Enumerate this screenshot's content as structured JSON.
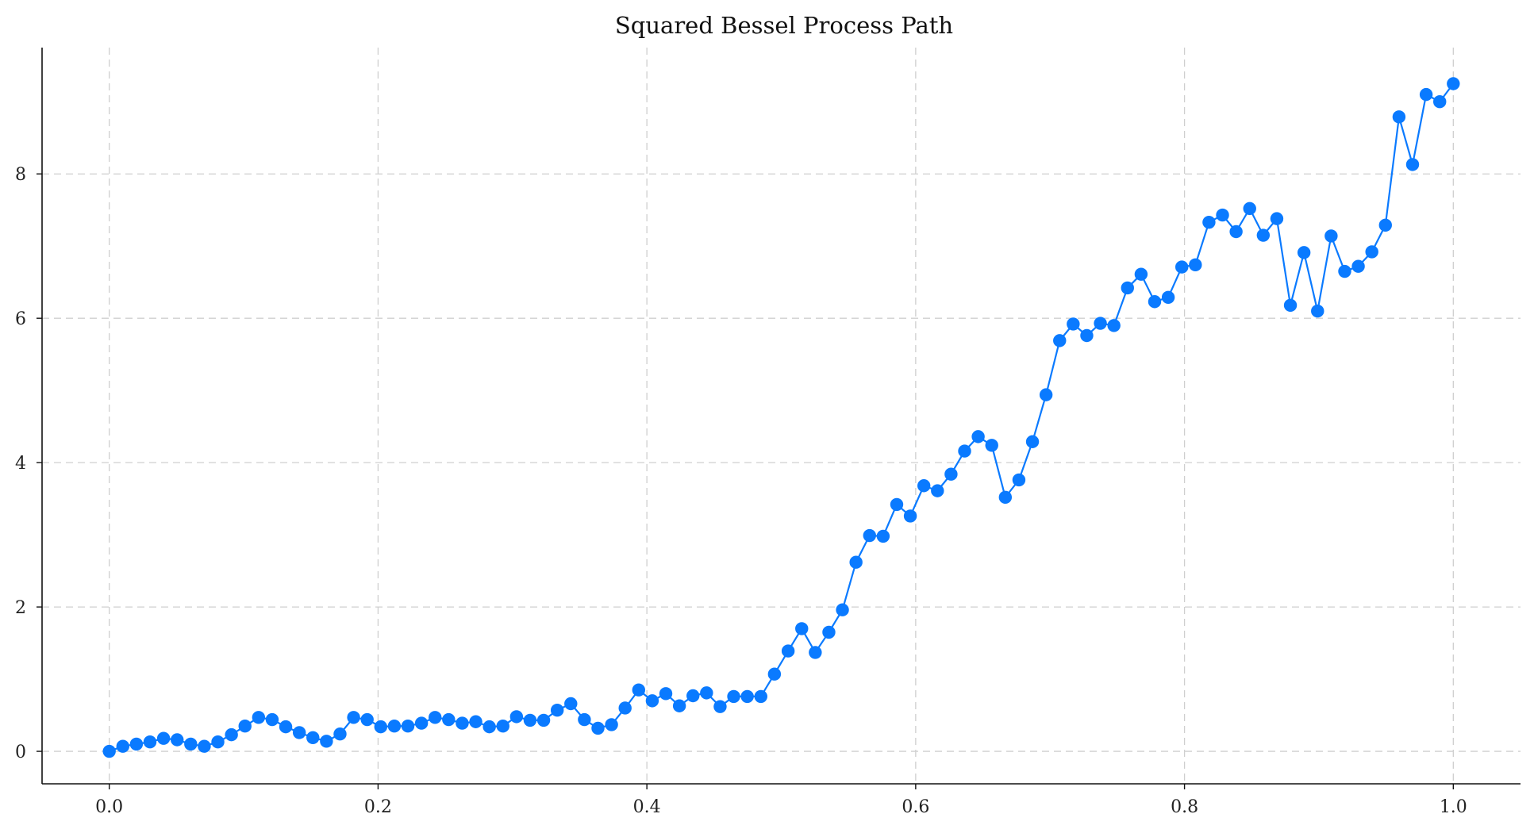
{
  "chart_data": {
    "type": "line",
    "title": "Squared Bessel Process Path",
    "xlabel": "",
    "ylabel": "",
    "xlim": [
      -0.05,
      1.05
    ],
    "ylim": [
      -0.45,
      9.75
    ],
    "xticks": [
      0.0,
      0.2,
      0.4,
      0.6,
      0.8,
      1.0
    ],
    "xtick_labels": [
      "0.0",
      "0.2",
      "0.4",
      "0.6",
      "0.8",
      "1.0"
    ],
    "yticks": [
      0,
      2,
      4,
      6,
      8
    ],
    "ytick_labels": [
      "0",
      "2",
      "4",
      "6",
      "8"
    ],
    "grid": true,
    "legend": "none",
    "series": [
      {
        "color": "#0a7aff",
        "marker": "circle",
        "x": [
          0.0,
          0.0101,
          0.0202,
          0.0303,
          0.0404,
          0.0505,
          0.0606,
          0.0707,
          0.0808,
          0.0909,
          0.101,
          0.1111,
          0.1212,
          0.1313,
          0.1414,
          0.1515,
          0.1616,
          0.1717,
          0.1818,
          0.1919,
          0.202,
          0.2121,
          0.2222,
          0.2323,
          0.2424,
          0.2525,
          0.2626,
          0.2727,
          0.2828,
          0.2929,
          0.303,
          0.3131,
          0.3232,
          0.3333,
          0.3434,
          0.3535,
          0.3636,
          0.3737,
          0.3838,
          0.3939,
          0.404,
          0.4141,
          0.4242,
          0.4343,
          0.4444,
          0.4545,
          0.4646,
          0.4747,
          0.4848,
          0.4949,
          0.5051,
          0.5152,
          0.5253,
          0.5354,
          0.5455,
          0.5556,
          0.5657,
          0.5758,
          0.5859,
          0.596,
          0.6061,
          0.6162,
          0.6263,
          0.6364,
          0.6465,
          0.6566,
          0.6667,
          0.6768,
          0.6869,
          0.697,
          0.7071,
          0.7172,
          0.7273,
          0.7374,
          0.7475,
          0.7576,
          0.7677,
          0.7778,
          0.7879,
          0.798,
          0.8081,
          0.8182,
          0.8283,
          0.8384,
          0.8485,
          0.8586,
          0.8687,
          0.8788,
          0.8889,
          0.899,
          0.9091,
          0.9192,
          0.9293,
          0.9394,
          0.9495,
          0.9596,
          0.9697,
          0.9798,
          0.9899,
          1.0
        ],
        "y": [
          0.0,
          0.07,
          0.1,
          0.13,
          0.18,
          0.16,
          0.1,
          0.07,
          0.13,
          0.23,
          0.35,
          0.47,
          0.44,
          0.34,
          0.26,
          0.19,
          0.14,
          0.24,
          0.47,
          0.44,
          0.34,
          0.35,
          0.35,
          0.39,
          0.47,
          0.44,
          0.39,
          0.41,
          0.34,
          0.35,
          0.48,
          0.43,
          0.43,
          0.57,
          0.66,
          0.44,
          0.32,
          0.37,
          0.6,
          0.85,
          0.7,
          0.8,
          0.63,
          0.77,
          0.81,
          0.62,
          0.76,
          0.76,
          0.76,
          1.07,
          1.39,
          1.7,
          1.37,
          1.65,
          1.96,
          2.62,
          2.99,
          2.98,
          3.42,
          3.26,
          3.68,
          3.61,
          3.84,
          4.16,
          4.36,
          4.24,
          3.52,
          3.76,
          4.29,
          4.94,
          5.69,
          5.92,
          5.76,
          5.93,
          5.9,
          6.42,
          6.61,
          6.23,
          6.29,
          6.71,
          6.74,
          7.33,
          7.43,
          7.2,
          7.52,
          7.15,
          7.38,
          6.18,
          6.91,
          6.1,
          7.14,
          6.65,
          6.72,
          6.92,
          7.29,
          8.79,
          8.13,
          9.1,
          9.0,
          9.25
        ]
      }
    ]
  }
}
